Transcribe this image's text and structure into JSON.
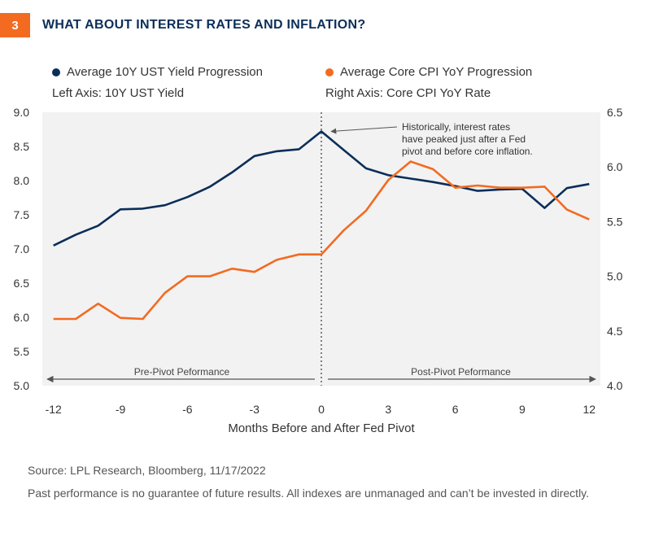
{
  "header": {
    "badge": "3",
    "title": "WHAT ABOUT INTEREST RATES AND INFLATION?"
  },
  "legend": {
    "left": {
      "label": "Average 10Y UST Yield Progression",
      "axis_note": "Left Axis: 10Y UST Yield",
      "color": "#0b2e59"
    },
    "right": {
      "label": "Average Core CPI YoY Progression",
      "axis_note": "Right Axis: Core CPI YoY Rate",
      "color": "#f26b21"
    }
  },
  "footer": {
    "source": "Source: LPL Research, Bloomberg,  11/17/2022",
    "disclaimer": "Past performance is no guarantee of future results. All indexes are unmanaged and can’t be invested in directly."
  },
  "chart_data": {
    "type": "line",
    "xlabel": "Months Before and After Fed Pivot",
    "x": [
      -12,
      -11,
      -10,
      -9,
      -8,
      -7,
      -6,
      -5,
      -4,
      -3,
      -2,
      -1,
      0,
      1,
      2,
      3,
      4,
      5,
      6,
      7,
      8,
      9,
      10,
      11,
      12
    ],
    "x_ticks": [
      -12,
      -9,
      -6,
      -3,
      0,
      3,
      6,
      9,
      12
    ],
    "xlim": [
      -12.5,
      12.5
    ],
    "y_left": {
      "label": "10Y UST Yield",
      "lim": [
        5.0,
        9.0
      ],
      "ticks": [
        "5.0",
        "5.5",
        "6.0",
        "6.5",
        "7.0",
        "7.5",
        "8.0",
        "8.5",
        "9.0"
      ]
    },
    "y_right": {
      "label": "Core CPI YoY Rate",
      "lim": [
        4.0,
        6.5
      ],
      "ticks": [
        "4.0",
        "4.5",
        "5.0",
        "5.5",
        "6.0",
        "6.5"
      ]
    },
    "series": [
      {
        "name": "Average 10Y UST Yield Progression",
        "axis": "left",
        "color": "#0b2e59",
        "values": [
          7.05,
          7.21,
          7.34,
          7.58,
          7.59,
          7.64,
          7.76,
          7.91,
          8.12,
          8.36,
          8.43,
          8.46,
          8.72,
          8.45,
          8.18,
          8.08,
          8.03,
          7.98,
          7.92,
          7.85,
          7.87,
          7.88,
          7.6,
          7.89,
          7.95
        ]
      },
      {
        "name": "Average Core CPI YoY Progression",
        "axis": "right",
        "color": "#f26b21",
        "values": [
          4.61,
          4.61,
          4.75,
          4.62,
          4.61,
          4.85,
          5.0,
          5.0,
          5.07,
          5.04,
          5.15,
          5.2,
          5.2,
          5.42,
          5.6,
          5.88,
          6.05,
          5.98,
          5.81,
          5.83,
          5.81,
          5.81,
          5.82,
          5.61,
          5.52
        ]
      }
    ],
    "pivot_x": 0,
    "annotation": "Historically, interest rates have peaked just after a Fed pivot and before core inflation.",
    "regions": {
      "pre": "Pre-Pivot Peformance",
      "post": "Post-Pivot Peformance"
    },
    "background": "#f2f2f2",
    "grid": false
  }
}
